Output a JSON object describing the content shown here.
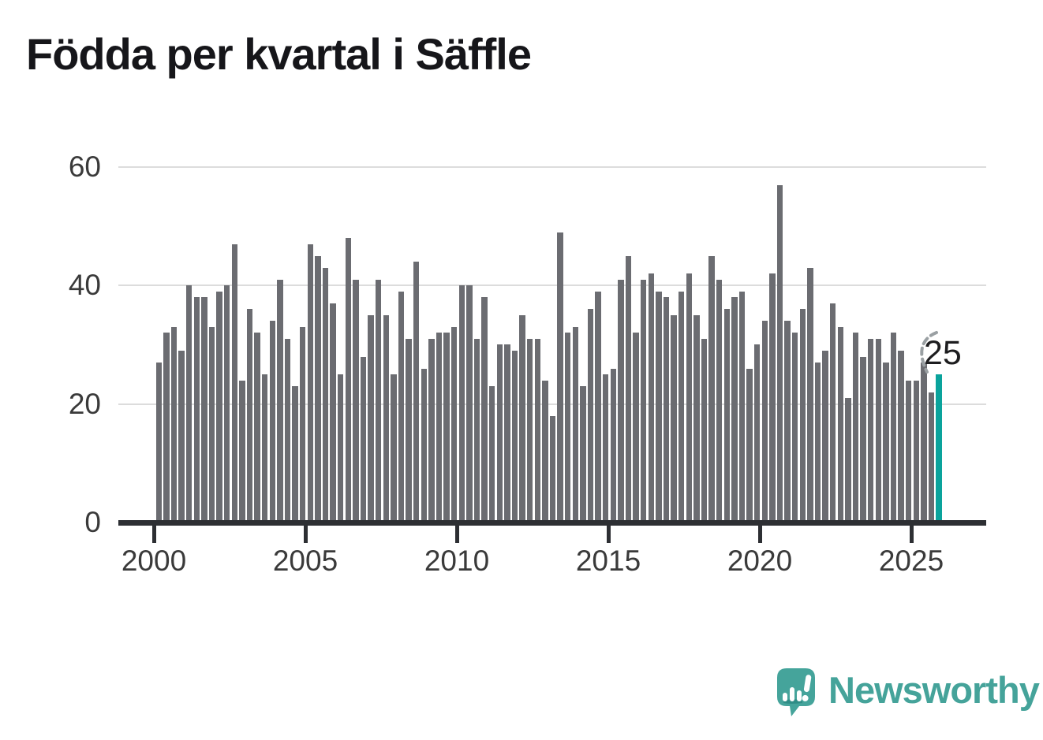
{
  "title": "Födda per kvartal i Säffle",
  "annotation": {
    "label": "25"
  },
  "logo": {
    "text": "Newsworthy"
  },
  "colors": {
    "bar": "#6b6c71",
    "highlight_bar": "#0aa39c",
    "axis": "#2d2f33",
    "gridline": "#dcdcdc",
    "tick_text": "#3a3a3a",
    "title_text": "#16161a",
    "logo_teal": "#45a39a"
  },
  "chart_data": {
    "type": "bar",
    "title": "Födda per kvartal i Säffle",
    "x_start": "2000 Q1",
    "x_freq": "quarterly",
    "x_tick_labels": [
      "2000",
      "2005",
      "2010",
      "2015",
      "2020",
      "2025"
    ],
    "y_ticks": [
      0,
      20,
      40,
      60
    ],
    "ylim": [
      0,
      60
    ],
    "grid": "horizontal",
    "series": [
      {
        "name": "Födda per kvartal",
        "values": [
          27,
          32,
          33,
          29,
          40,
          38,
          38,
          33,
          39,
          40,
          47,
          24,
          36,
          32,
          25,
          34,
          41,
          31,
          23,
          33,
          47,
          45,
          43,
          37,
          25,
          48,
          41,
          28,
          35,
          41,
          35,
          25,
          39,
          31,
          44,
          26,
          31,
          32,
          32,
          33,
          40,
          40,
          31,
          38,
          23,
          30,
          30,
          29,
          35,
          31,
          31,
          24,
          18,
          49,
          32,
          33,
          23,
          36,
          39,
          25,
          26,
          41,
          45,
          32,
          41,
          42,
          39,
          38,
          35,
          39,
          42,
          35,
          31,
          45,
          41,
          36,
          38,
          39,
          26,
          30,
          34,
          42,
          57,
          34,
          32,
          36,
          43,
          27,
          29,
          37,
          33,
          21,
          32,
          28,
          31,
          31,
          27,
          32,
          29,
          24,
          24,
          27,
          22,
          25
        ]
      }
    ],
    "highlight": {
      "quarter": "2025 Q4",
      "value": 25,
      "data_label": "25"
    }
  }
}
